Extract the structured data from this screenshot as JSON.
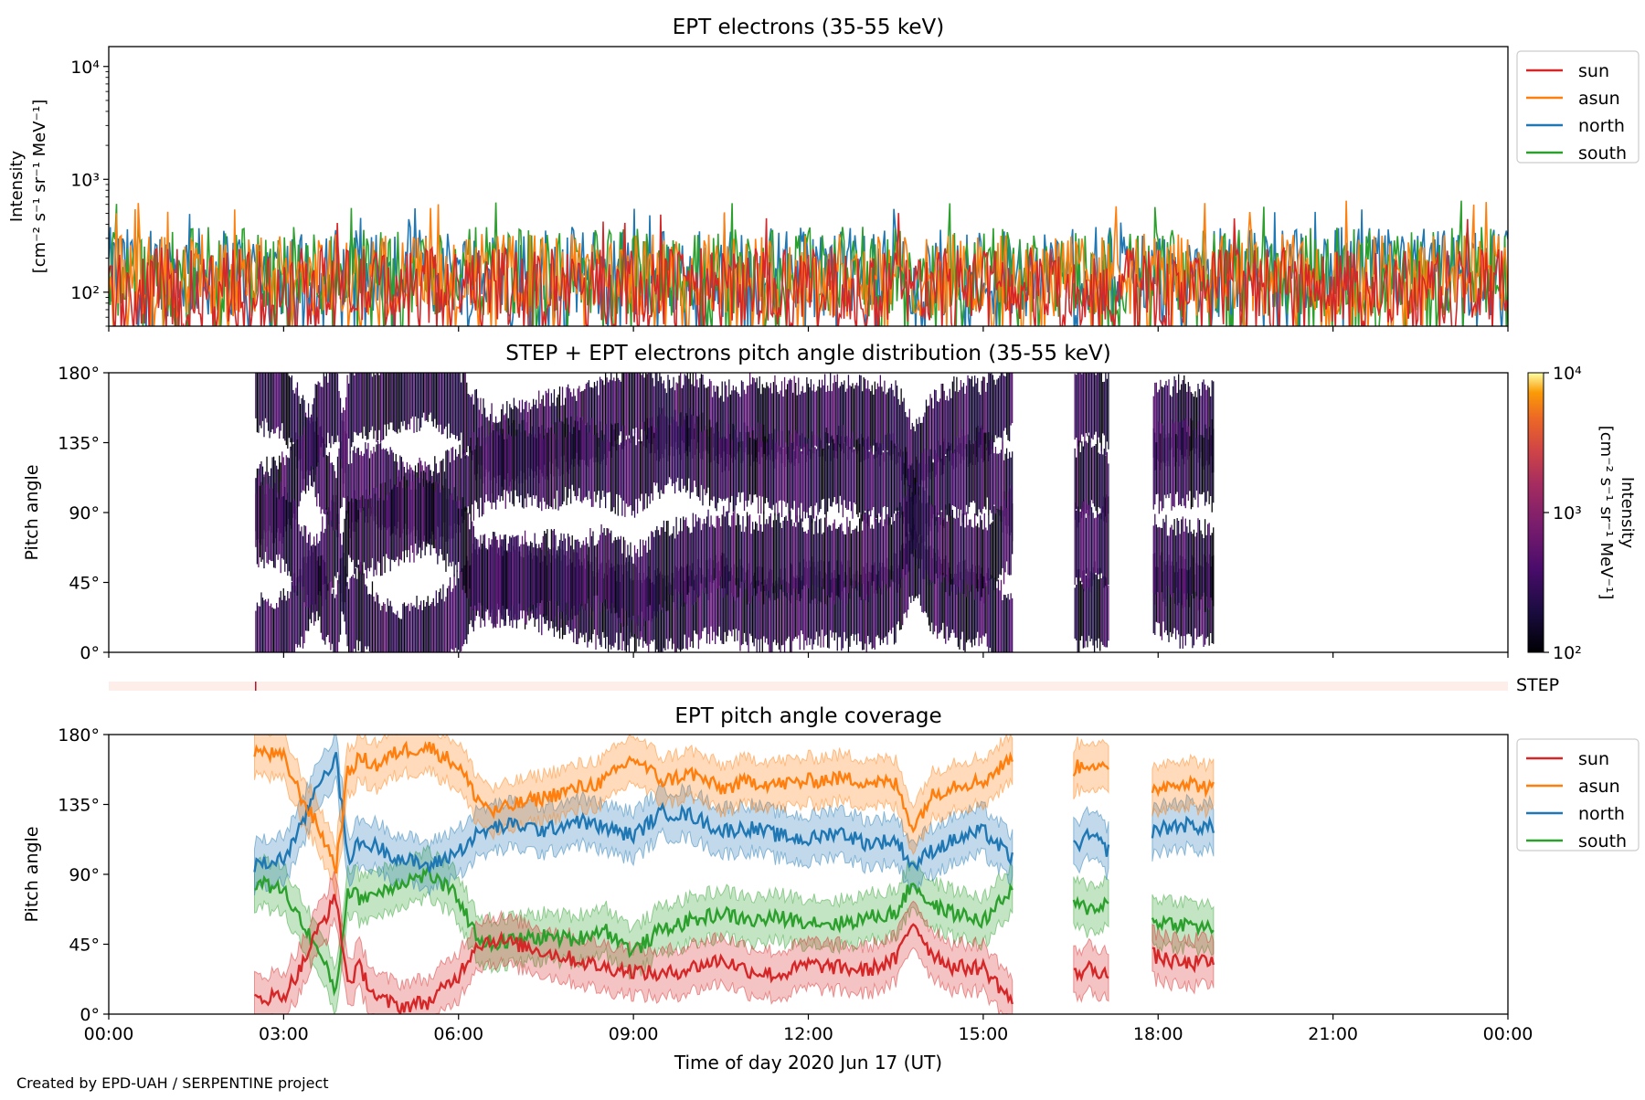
{
  "footer": {
    "credit": "Created by EPD-UAH / SERPENTINE project"
  },
  "colors": {
    "sun": "#d62728",
    "asun": "#ff7f0e",
    "north": "#1f77b4",
    "south": "#2ca02c",
    "step_band": "#fdeeea",
    "step_marker": "#b2182b"
  },
  "chart_data": [
    {
      "id": "intensity",
      "type": "line",
      "title": "EPT electrons (35-55 keV)",
      "ylabel": [
        "Intensity",
        "[cm⁻² s⁻¹ sr⁻¹ MeV⁻¹]"
      ],
      "yscale": "log",
      "ylim": [
        50,
        15000
      ],
      "yticks": [
        100,
        1000,
        10000
      ],
      "ytick_labels": [
        "10²",
        "10³",
        "10⁴"
      ],
      "xlim_hours": [
        0,
        24
      ],
      "legend": {
        "placement": "upper-right-outside",
        "entries": [
          "sun",
          "asun",
          "north",
          "south"
        ]
      },
      "series": [
        {
          "name": "sun",
          "color": "#d62728",
          "typical_range": [
            50,
            250
          ],
          "peak": 560
        },
        {
          "name": "asun",
          "color": "#ff7f0e",
          "typical_range": [
            60,
            330
          ],
          "peak": 650
        },
        {
          "name": "north",
          "color": "#1f77b4",
          "typical_range": [
            60,
            380
          ],
          "peak": 560
        },
        {
          "name": "south",
          "color": "#2ca02c",
          "typical_range": [
            60,
            380
          ],
          "peak": 730
        }
      ]
    },
    {
      "id": "pad",
      "type": "heatmap",
      "title": "STEP + EPT electrons pitch angle distribution (35-55 keV)",
      "ylabel": "Pitch angle",
      "ylim": [
        0,
        180
      ],
      "yticks": [
        0,
        45,
        90,
        135,
        180
      ],
      "ytick_labels": [
        "0°",
        "45°",
        "90°",
        "135°",
        "180°"
      ],
      "xlim_hours": [
        0,
        24
      ],
      "colorbar": {
        "label": [
          "Intensity",
          "[cm⁻² s⁻¹ sr⁻¹ MeV⁻¹]"
        ],
        "scale": "log",
        "range": [
          100,
          10000
        ],
        "tick_labels": [
          "10²",
          "10³",
          "10⁴"
        ],
        "colormap": "inferno"
      },
      "data_intervals_hours": [
        [
          2.5,
          15.5
        ],
        [
          16.55,
          17.15
        ],
        [
          17.9,
          18.95
        ]
      ]
    },
    {
      "id": "step",
      "type": "heatmap",
      "label": "STEP",
      "marker_hour": 2.52
    },
    {
      "id": "coverage",
      "type": "line",
      "title": "EPT pitch angle coverage",
      "xlabel": "Time of day 2020 Jun 17 (UT)",
      "ylabel": "Pitch angle",
      "ylim": [
        0,
        180
      ],
      "yticks": [
        0,
        45,
        90,
        135,
        180
      ],
      "ytick_labels": [
        "0°",
        "45°",
        "90°",
        "135°",
        "180°"
      ],
      "xlim_hours": [
        0,
        24
      ],
      "xticks_hours": [
        0,
        3,
        6,
        9,
        12,
        15,
        18,
        21,
        24
      ],
      "xtick_labels": [
        "00:00",
        "03:00",
        "06:00",
        "09:00",
        "12:00",
        "15:00",
        "18:00",
        "21:00",
        "00:00"
      ],
      "band_halfwidth_deg": 15,
      "legend": {
        "placement": "upper-right-outside",
        "entries": [
          "sun",
          "asun",
          "north",
          "south"
        ]
      },
      "series": [
        {
          "name": "sun",
          "color": "#d62728",
          "segments": [
            {
              "x": [
                2.5,
                3.0,
                3.3,
                3.6,
                3.9,
                4.1,
                4.3,
                4.6,
                5.0,
                5.5,
                6.0,
                6.3,
                6.6,
                7.0,
                7.5,
                8.0,
                8.5,
                9.0,
                9.5,
                10.0,
                10.5,
                11.0,
                11.5,
                12.0,
                12.5,
                13.0,
                13.5,
                13.8,
                14.1,
                14.5,
                15.0,
                15.5
              ],
              "y": [
                10,
                12,
                30,
                55,
                75,
                20,
                30,
                10,
                5,
                8,
                25,
                45,
                48,
                45,
                40,
                35,
                30,
                28,
                25,
                30,
                35,
                28,
                25,
                32,
                30,
                28,
                35,
                60,
                40,
                30,
                30,
                8
              ]
            },
            {
              "x": [
                16.55,
                16.85,
                17.15
              ],
              "y": [
                25,
                30,
                25
              ]
            },
            {
              "x": [
                17.9,
                18.4,
                18.95
              ],
              "y": [
                38,
                32,
                34
              ]
            }
          ]
        },
        {
          "name": "asun",
          "color": "#ff7f0e",
          "segments": [
            {
              "x": [
                2.5,
                3.0,
                3.3,
                3.6,
                3.9,
                4.1,
                4.3,
                4.6,
                5.0,
                5.5,
                6.0,
                6.3,
                6.6,
                7.0,
                7.5,
                8.0,
                8.5,
                9.0,
                9.5,
                10.0,
                10.5,
                11.0,
                11.5,
                12.0,
                12.5,
                13.0,
                13.5,
                13.8,
                14.1,
                14.5,
                15.0,
                15.5
              ],
              "y": [
                170,
                165,
                140,
                120,
                95,
                155,
                165,
                160,
                170,
                172,
                160,
                140,
                130,
                135,
                140,
                145,
                150,
                165,
                150,
                155,
                145,
                150,
                148,
                150,
                152,
                150,
                148,
                120,
                140,
                148,
                150,
                165
              ]
            },
            {
              "x": [
                16.55,
                16.85,
                17.15
              ],
              "y": [
                158,
                162,
                155
              ]
            },
            {
              "x": [
                17.9,
                18.4,
                18.95
              ],
              "y": [
                145,
                150,
                145
              ]
            }
          ]
        },
        {
          "name": "north",
          "color": "#1f77b4",
          "segments": [
            {
              "x": [
                2.5,
                3.0,
                3.3,
                3.6,
                3.9,
                4.1,
                4.3,
                4.6,
                5.0,
                5.5,
                6.0,
                6.3,
                6.6,
                7.0,
                7.5,
                8.0,
                8.5,
                9.0,
                9.5,
                10.0,
                10.5,
                11.0,
                11.5,
                12.0,
                12.5,
                13.0,
                13.5,
                13.8,
                14.1,
                14.5,
                15.0,
                15.5
              ],
              "y": [
                95,
                100,
                120,
                150,
                165,
                100,
                110,
                108,
                100,
                95,
                105,
                115,
                120,
                122,
                118,
                125,
                120,
                115,
                130,
                128,
                118,
                120,
                115,
                112,
                118,
                110,
                112,
                95,
                105,
                112,
                118,
                100
              ]
            },
            {
              "x": [
                16.55,
                16.85,
                17.15
              ],
              "y": [
                108,
                115,
                105
              ]
            },
            {
              "x": [
                17.9,
                18.4,
                18.95
              ],
              "y": [
                118,
                122,
                120
              ]
            }
          ]
        },
        {
          "name": "south",
          "color": "#2ca02c",
          "segments": [
            {
              "x": [
                2.5,
                3.0,
                3.3,
                3.6,
                3.9,
                4.1,
                4.3,
                4.6,
                5.0,
                5.5,
                6.0,
                6.3,
                6.6,
                7.0,
                7.5,
                8.0,
                8.5,
                9.0,
                9.5,
                10.0,
                10.5,
                11.0,
                11.5,
                12.0,
                12.5,
                13.0,
                13.5,
                13.8,
                14.1,
                14.5,
                15.0,
                15.5
              ],
              "y": [
                85,
                80,
                60,
                40,
                15,
                80,
                75,
                78,
                85,
                90,
                75,
                50,
                45,
                48,
                50,
                48,
                55,
                40,
                55,
                60,
                65,
                60,
                62,
                60,
                58,
                62,
                65,
                85,
                70,
                65,
                60,
                80
              ]
            },
            {
              "x": [
                16.55,
                16.85,
                17.15
              ],
              "y": [
                70,
                68,
                72
              ]
            },
            {
              "x": [
                17.9,
                18.4,
                18.95
              ],
              "y": [
                60,
                58,
                55
              ]
            }
          ]
        }
      ]
    }
  ]
}
